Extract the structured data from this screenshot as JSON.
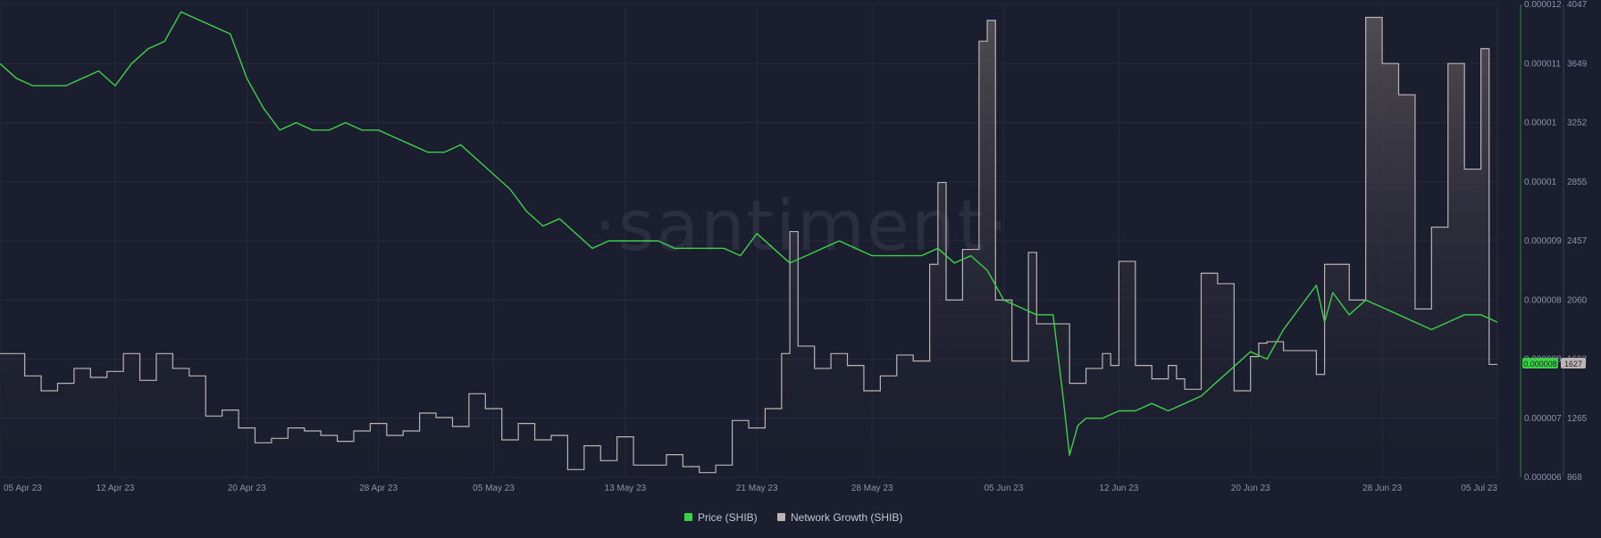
{
  "watermark": "·santiment·",
  "colors": {
    "background": "#1b1e2e",
    "grid": "#262a3b",
    "price": "#3ecf4a",
    "network": "#bdb3b5",
    "network_fill_top": "#5a5358",
    "axis_text": "#8d93a8"
  },
  "legend": {
    "price": "Price (SHIB)",
    "network": "Network Growth (SHIB)"
  },
  "badges": {
    "price": "0.000008",
    "network": "1627"
  },
  "chart_data": {
    "type": "line",
    "x_ticks": [
      "05 Apr 23",
      "12 Apr 23",
      "20 Apr 23",
      "28 Apr 23",
      "05 May 23",
      "13 May 23",
      "21 May 23",
      "28 May 23",
      "05 Jun 23",
      "12 Jun 23",
      "20 Jun 23",
      "28 Jun 23",
      "05 Jul 23"
    ],
    "x_tick_days": [
      0,
      7,
      15,
      23,
      30,
      38,
      46,
      53,
      61,
      68,
      76,
      84,
      91
    ],
    "x_range_days": [
      0,
      91
    ],
    "y_right_outer": {
      "label": "Network Growth (SHIB)",
      "ticks": [
        "4047",
        "3649",
        "3252",
        "2855",
        "2457",
        "2060",
        "1662",
        "1265",
        "868"
      ],
      "range": [
        868,
        4047
      ]
    },
    "y_right_inner": {
      "label": "Price (SHIB)",
      "ticks": [
        "0.000012",
        "0.000011",
        "0.00001",
        "0.00001",
        "0.000009",
        "0.000008",
        "0.000008",
        "0.000007",
        "0.000006"
      ],
      "range": [
        5.8e-06,
        1.22e-05
      ]
    },
    "series": [
      {
        "name": "Price (SHIB)",
        "points": [
          [
            0,
            1.14e-05
          ],
          [
            1,
            1.12e-05
          ],
          [
            2,
            1.11e-05
          ],
          [
            3,
            1.11e-05
          ],
          [
            4,
            1.11e-05
          ],
          [
            5,
            1.12e-05
          ],
          [
            6,
            1.13e-05
          ],
          [
            7,
            1.11e-05
          ],
          [
            8,
            1.14e-05
          ],
          [
            9,
            1.16e-05
          ],
          [
            10,
            1.17e-05
          ],
          [
            11,
            1.21e-05
          ],
          [
            12,
            1.2e-05
          ],
          [
            13,
            1.19e-05
          ],
          [
            14,
            1.18e-05
          ],
          [
            15,
            1.12e-05
          ],
          [
            16,
            1.08e-05
          ],
          [
            17,
            1.05e-05
          ],
          [
            18,
            1.06e-05
          ],
          [
            19,
            1.05e-05
          ],
          [
            20,
            1.05e-05
          ],
          [
            21,
            1.06e-05
          ],
          [
            22,
            1.05e-05
          ],
          [
            23,
            1.05e-05
          ],
          [
            24,
            1.04e-05
          ],
          [
            25,
            1.03e-05
          ],
          [
            26,
            1.02e-05
          ],
          [
            27,
            1.02e-05
          ],
          [
            28,
            1.03e-05
          ],
          [
            29,
            1.01e-05
          ],
          [
            30,
            9.9e-06
          ],
          [
            31,
            9.7e-06
          ],
          [
            32,
            9.4e-06
          ],
          [
            33,
            9.2e-06
          ],
          [
            34,
            9.3e-06
          ],
          [
            35,
            9.1e-06
          ],
          [
            36,
            8.9e-06
          ],
          [
            37,
            9e-06
          ],
          [
            38,
            9e-06
          ],
          [
            39,
            9e-06
          ],
          [
            40,
            9e-06
          ],
          [
            41,
            8.9e-06
          ],
          [
            42,
            8.9e-06
          ],
          [
            43,
            8.9e-06
          ],
          [
            44,
            8.9e-06
          ],
          [
            45,
            8.8e-06
          ],
          [
            46,
            9.1e-06
          ],
          [
            47,
            8.9e-06
          ],
          [
            48,
            8.7e-06
          ],
          [
            49,
            8.8e-06
          ],
          [
            50,
            8.9e-06
          ],
          [
            51,
            9e-06
          ],
          [
            52,
            8.9e-06
          ],
          [
            53,
            8.8e-06
          ],
          [
            54,
            8.8e-06
          ],
          [
            55,
            8.8e-06
          ],
          [
            56,
            8.8e-06
          ],
          [
            57,
            8.9e-06
          ],
          [
            58,
            8.7e-06
          ],
          [
            59,
            8.8e-06
          ],
          [
            60,
            8.6e-06
          ],
          [
            61,
            8.2e-06
          ],
          [
            62,
            8.1e-06
          ],
          [
            63,
            8e-06
          ],
          [
            63.5,
            8e-06
          ],
          [
            64,
            8e-06
          ],
          [
            64.6,
            6.9e-06
          ],
          [
            65,
            6.1e-06
          ],
          [
            65.5,
            6.5e-06
          ],
          [
            66,
            6.6e-06
          ],
          [
            67,
            6.6e-06
          ],
          [
            68,
            6.7e-06
          ],
          [
            69,
            6.7e-06
          ],
          [
            70,
            6.8e-06
          ],
          [
            71,
            6.7e-06
          ],
          [
            72,
            6.8e-06
          ],
          [
            73,
            6.9e-06
          ],
          [
            74,
            7.1e-06
          ],
          [
            75,
            7.3e-06
          ],
          [
            76,
            7.5e-06
          ],
          [
            77,
            7.4e-06
          ],
          [
            78,
            7.8e-06
          ],
          [
            79,
            8.1e-06
          ],
          [
            80,
            8.4e-06
          ],
          [
            80.5,
            7.9e-06
          ],
          [
            81,
            8.3e-06
          ],
          [
            82,
            8e-06
          ],
          [
            83,
            8.2e-06
          ],
          [
            84,
            8.1e-06
          ],
          [
            85,
            8e-06
          ],
          [
            86,
            7.9e-06
          ],
          [
            87,
            7.8e-06
          ],
          [
            88,
            7.9e-06
          ],
          [
            89,
            8e-06
          ],
          [
            90,
            8e-06
          ],
          [
            91,
            7.9e-06
          ]
        ]
      },
      {
        "name": "Network Growth (SHIB)",
        "points": [
          [
            0,
            1700
          ],
          [
            1.5,
            1550
          ],
          [
            2.5,
            1450
          ],
          [
            3.5,
            1500
          ],
          [
            4.5,
            1600
          ],
          [
            5.5,
            1540
          ],
          [
            6.5,
            1580
          ],
          [
            7.5,
            1700
          ],
          [
            8.5,
            1520
          ],
          [
            9.5,
            1700
          ],
          [
            10.5,
            1600
          ],
          [
            11.5,
            1550
          ],
          [
            12.5,
            1280
          ],
          [
            13.5,
            1320
          ],
          [
            14.5,
            1200
          ],
          [
            15.5,
            1100
          ],
          [
            16.5,
            1130
          ],
          [
            17.5,
            1200
          ],
          [
            18.5,
            1180
          ],
          [
            19.5,
            1150
          ],
          [
            20.5,
            1110
          ],
          [
            21.5,
            1180
          ],
          [
            22.5,
            1230
          ],
          [
            23.5,
            1150
          ],
          [
            24.5,
            1180
          ],
          [
            25.5,
            1300
          ],
          [
            26.5,
            1270
          ],
          [
            27.5,
            1210
          ],
          [
            28.5,
            1430
          ],
          [
            29.5,
            1330
          ],
          [
            30.5,
            1120
          ],
          [
            31.5,
            1230
          ],
          [
            32.5,
            1120
          ],
          [
            33.5,
            1150
          ],
          [
            34.5,
            920
          ],
          [
            35.5,
            1080
          ],
          [
            36.5,
            980
          ],
          [
            37.5,
            1140
          ],
          [
            38.5,
            950
          ],
          [
            39.5,
            950
          ],
          [
            40.5,
            1020
          ],
          [
            41.5,
            940
          ],
          [
            42.5,
            900
          ],
          [
            43.5,
            950
          ],
          [
            44.5,
            1250
          ],
          [
            45.5,
            1200
          ],
          [
            46.5,
            1330
          ],
          [
            47.5,
            1700
          ],
          [
            48.0,
            2520
          ],
          [
            48.5,
            1750
          ],
          [
            49.5,
            1600
          ],
          [
            50.5,
            1700
          ],
          [
            51.5,
            1620
          ],
          [
            52.5,
            1450
          ],
          [
            53.5,
            1550
          ],
          [
            54.5,
            1690
          ],
          [
            55.5,
            1650
          ],
          [
            56.5,
            2300
          ],
          [
            57.0,
            2850
          ],
          [
            57.5,
            2060
          ],
          [
            58.5,
            2400
          ],
          [
            59.5,
            3800
          ],
          [
            60.0,
            3940
          ],
          [
            60.5,
            2060
          ],
          [
            61.5,
            1650
          ],
          [
            62.5,
            2380
          ],
          [
            63.0,
            1900
          ],
          [
            64.0,
            1900
          ],
          [
            65.0,
            1500
          ],
          [
            66.0,
            1600
          ],
          [
            67.0,
            1700
          ],
          [
            67.5,
            1620
          ],
          [
            68.0,
            2320
          ],
          [
            69.0,
            1620
          ],
          [
            70.0,
            1530
          ],
          [
            71.0,
            1620
          ],
          [
            71.5,
            1530
          ],
          [
            72.0,
            1460
          ],
          [
            73.0,
            2240
          ],
          [
            74.0,
            2170
          ],
          [
            75.0,
            1450
          ],
          [
            76.0,
            1680
          ],
          [
            76.5,
            1770
          ],
          [
            77.0,
            1780
          ],
          [
            78.0,
            1720
          ],
          [
            79.0,
            1720
          ],
          [
            80.0,
            1560
          ],
          [
            80.5,
            2300
          ],
          [
            81.0,
            2300
          ],
          [
            82.0,
            2060
          ],
          [
            83.0,
            3960
          ],
          [
            84.0,
            3650
          ],
          [
            85.0,
            3440
          ],
          [
            86.0,
            2000
          ],
          [
            87.0,
            2550
          ],
          [
            88.0,
            3650
          ],
          [
            89.0,
            2940
          ],
          [
            90.0,
            3750
          ],
          [
            90.5,
            1627
          ],
          [
            91.0,
            1627
          ]
        ]
      }
    ],
    "grid": true,
    "legend_position": "bottom-center"
  }
}
